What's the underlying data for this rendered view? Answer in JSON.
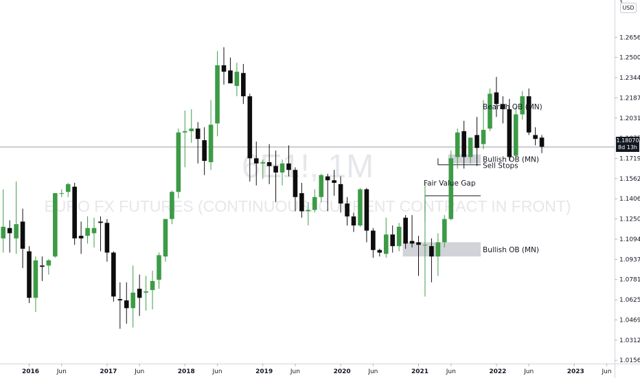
{
  "chart_data": {
    "type": "candlestick",
    "watermark": {
      "symbol": "6E1!, 1M",
      "description": "EURO FX FUTURES (CONTINUOUS: CURRENT CONTRACT IN FRONT)"
    },
    "currency": "USD",
    "last_price": {
      "value": "1.18070",
      "countdown": "8d 13h"
    },
    "y_axis": {
      "ticks": [
        "1.26565",
        "1.25000",
        "1.23440",
        "1.21875",
        "1.20315",
        "1.18750",
        "1.17190",
        "1.15625",
        "1.14065",
        "1.12500",
        "1.10940",
        "1.09375",
        "1.07815",
        "1.06250",
        "1.04690",
        "1.03125",
        "1.01565"
      ],
      "ylim": [
        1.0131,
        1.2908
      ]
    },
    "x_axis": {
      "ticks": [
        {
          "label": "2016",
          "bold": true,
          "m": 0
        },
        {
          "label": "Jun",
          "bold": false,
          "m": 5
        },
        {
          "label": "2017",
          "bold": true,
          "m": 12
        },
        {
          "label": "Jun",
          "bold": false,
          "m": 17
        },
        {
          "label": "2018",
          "bold": true,
          "m": 24
        },
        {
          "label": "Jun",
          "bold": false,
          "m": 29
        },
        {
          "label": "2019",
          "bold": true,
          "m": 36
        },
        {
          "label": "Jun",
          "bold": false,
          "m": 41
        },
        {
          "label": "2020",
          "bold": true,
          "m": 48
        },
        {
          "label": "Jun",
          "bold": false,
          "m": 53
        },
        {
          "label": "2021",
          "bold": true,
          "m": 60
        },
        {
          "label": "Jun",
          "bold": false,
          "m": 65
        },
        {
          "label": "2022",
          "bold": true,
          "m": 72
        },
        {
          "label": "Jun",
          "bold": false,
          "m": 77
        },
        {
          "label": "2023",
          "bold": true,
          "m": 84
        },
        {
          "label": "Jun",
          "bold": false,
          "m": 89
        }
      ]
    },
    "candles": [
      {
        "o": 1.11,
        "h": 1.148,
        "l": 1.099,
        "c": 1.119
      },
      {
        "o": 1.118,
        "h": 1.124,
        "l": 1.099,
        "c": 1.114
      },
      {
        "o": 1.11,
        "h": 1.154,
        "l": 1.098,
        "c": 1.121
      },
      {
        "o": 1.123,
        "h": 1.133,
        "l": 1.087,
        "c": 1.102
      },
      {
        "o": 1.1,
        "h": 1.104,
        "l": 1.06,
        "c": 1.064
      },
      {
        "o": 1.064,
        "h": 1.096,
        "l": 1.053,
        "c": 1.093
      },
      {
        "o": 1.089,
        "h": 1.096,
        "l": 1.077,
        "c": 1.088
      },
      {
        "o": 1.089,
        "h": 1.094,
        "l": 1.082,
        "c": 1.093
      },
      {
        "o": 1.096,
        "h": 1.145,
        "l": 1.095,
        "c": 1.145
      },
      {
        "o": 1.145,
        "h": 1.148,
        "l": 1.142,
        "c": 1.145
      },
      {
        "o": 1.146,
        "h": 1.153,
        "l": 1.142,
        "c": 1.152
      },
      {
        "o": 1.15,
        "h": 1.153,
        "l": 1.105,
        "c": 1.11
      },
      {
        "o": 1.112,
        "h": 1.123,
        "l": 1.098,
        "c": 1.11
      },
      {
        "o": 1.112,
        "h": 1.127,
        "l": 1.106,
        "c": 1.118
      },
      {
        "o": 1.114,
        "h": 1.126,
        "l": 1.103,
        "c": 1.118
      },
      {
        "o": 1.123,
        "h": 1.127,
        "l": 1.1,
        "c": 1.122
      },
      {
        "o": 1.122,
        "h": 1.125,
        "l": 1.092,
        "c": 1.099
      },
      {
        "o": 1.099,
        "h": 1.1,
        "l": 1.061,
        "c": 1.065
      },
      {
        "o": 1.063,
        "h": 1.076,
        "l": 1.04,
        "c": 1.062
      },
      {
        "o": 1.062,
        "h": 1.076,
        "l": 1.044,
        "c": 1.056
      },
      {
        "o": 1.056,
        "h": 1.089,
        "l": 1.041,
        "c": 1.068
      },
      {
        "o": 1.071,
        "h": 1.082,
        "l": 1.05,
        "c": 1.064
      },
      {
        "o": 1.068,
        "h": 1.081,
        "l": 1.054,
        "c": 1.069
      },
      {
        "o": 1.07,
        "h": 1.085,
        "l": 1.055,
        "c": 1.077
      },
      {
        "o": 1.078,
        "h": 1.099,
        "l": 1.071,
        "c": 1.097
      },
      {
        "o": 1.096,
        "h": 1.125,
        "l": 1.092,
        "c": 1.125
      },
      {
        "o": 1.125,
        "h": 1.147,
        "l": 1.121,
        "c": 1.146
      },
      {
        "o": 1.146,
        "h": 1.195,
        "l": 1.141,
        "c": 1.192
      },
      {
        "o": 1.192,
        "h": 1.209,
        "l": 1.165,
        "c": 1.193
      },
      {
        "o": 1.193,
        "h": 1.21,
        "l": 1.184,
        "c": 1.195
      },
      {
        "o": 1.195,
        "h": 1.2,
        "l": 1.168,
        "c": 1.187
      },
      {
        "o": 1.186,
        "h": 1.196,
        "l": 1.159,
        "c": 1.17
      },
      {
        "o": 1.169,
        "h": 1.217,
        "l": 1.163,
        "c": 1.198
      },
      {
        "o": 1.199,
        "h": 1.255,
        "l": 1.189,
        "c": 1.244
      },
      {
        "o": 1.244,
        "h": 1.258,
        "l": 1.229,
        "c": 1.239
      },
      {
        "o": 1.24,
        "h": 1.25,
        "l": 1.232,
        "c": 1.23
      },
      {
        "o": 1.228,
        "h": 1.246,
        "l": 1.22,
        "c": 1.239
      },
      {
        "o": 1.238,
        "h": 1.245,
        "l": 1.214,
        "c": 1.22
      },
      {
        "o": 1.22,
        "h": 1.222,
        "l": 1.154,
        "c": 1.172
      },
      {
        "o": 1.172,
        "h": 1.185,
        "l": 1.151,
        "c": 1.168
      },
      {
        "o": 1.168,
        "h": 1.171,
        "l": 1.156,
        "c": 1.169
      },
      {
        "o": 1.169,
        "h": 1.183,
        "l": 1.152,
        "c": 1.166
      },
      {
        "o": 1.166,
        "h": 1.178,
        "l": 1.138,
        "c": 1.161
      },
      {
        "o": 1.161,
        "h": 1.171,
        "l": 1.151,
        "c": 1.168
      },
      {
        "o": 1.168,
        "h": 1.182,
        "l": 1.158,
        "c": 1.163
      },
      {
        "o": 1.163,
        "h": 1.165,
        "l": 1.131,
        "c": 1.142
      },
      {
        "o": 1.145,
        "h": 1.153,
        "l": 1.126,
        "c": 1.131
      },
      {
        "o": 1.131,
        "h": 1.138,
        "l": 1.12,
        "c": 1.132
      },
      {
        "o": 1.132,
        "h": 1.148,
        "l": 1.13,
        "c": 1.142
      },
      {
        "o": 1.142,
        "h": 1.16,
        "l": 1.138,
        "c": 1.159
      },
      {
        "o": 1.158,
        "h": 1.16,
        "l": 1.131,
        "c": 1.155
      },
      {
        "o": 1.155,
        "h": 1.163,
        "l": 1.143,
        "c": 1.153
      },
      {
        "o": 1.152,
        "h": 1.158,
        "l": 1.13,
        "c": 1.137
      },
      {
        "o": 1.137,
        "h": 1.142,
        "l": 1.12,
        "c": 1.127
      },
      {
        "o": 1.127,
        "h": 1.13,
        "l": 1.115,
        "c": 1.12
      },
      {
        "o": 1.12,
        "h": 1.149,
        "l": 1.119,
        "c": 1.148
      },
      {
        "o": 1.148,
        "h": 1.149,
        "l": 1.107,
        "c": 1.116
      },
      {
        "o": 1.116,
        "h": 1.118,
        "l": 1.095,
        "c": 1.101
      },
      {
        "o": 1.101,
        "h": 1.102,
        "l": 1.096,
        "c": 1.099
      },
      {
        "o": 1.098,
        "h": 1.126,
        "l": 1.095,
        "c": 1.113
      },
      {
        "o": 1.113,
        "h": 1.12,
        "l": 1.099,
        "c": 1.104
      },
      {
        "o": 1.104,
        "h": 1.122,
        "l": 1.1,
        "c": 1.119
      },
      {
        "o": 1.126,
        "h": 1.128,
        "l": 1.102,
        "c": 1.106
      },
      {
        "o": 1.108,
        "h": 1.128,
        "l": 1.103,
        "c": 1.106
      },
      {
        "o": 1.107,
        "h": 1.112,
        "l": 1.081,
        "c": 1.105
      },
      {
        "o": 1.105,
        "h": 1.152,
        "l": 1.065,
        "c": 1.105
      },
      {
        "o": 1.104,
        "h": 1.11,
        "l": 1.076,
        "c": 1.096
      },
      {
        "o": 1.096,
        "h": 1.114,
        "l": 1.081,
        "c": 1.107
      },
      {
        "o": 1.107,
        "h": 1.128,
        "l": 1.103,
        "c": 1.125
      },
      {
        "o": 1.125,
        "h": 1.178,
        "l": 1.124,
        "c": 1.172
      },
      {
        "o": 1.173,
        "h": 1.195,
        "l": 1.164,
        "c": 1.192
      },
      {
        "o": 1.193,
        "h": 1.201,
        "l": 1.164,
        "c": 1.173
      },
      {
        "o": 1.173,
        "h": 1.188,
        "l": 1.168,
        "c": 1.188
      },
      {
        "o": 1.19,
        "h": 1.204,
        "l": 1.166,
        "c": 1.18
      },
      {
        "o": 1.183,
        "h": 1.217,
        "l": 1.179,
        "c": 1.194
      },
      {
        "o": 1.195,
        "h": 1.226,
        "l": 1.193,
        "c": 1.222
      },
      {
        "o": 1.223,
        "h": 1.235,
        "l": 1.204,
        "c": 1.214
      },
      {
        "o": 1.214,
        "h": 1.22,
        "l": 1.199,
        "c": 1.21
      },
      {
        "o": 1.21,
        "h": 1.218,
        "l": 1.17,
        "c": 1.173
      },
      {
        "o": 1.174,
        "h": 1.212,
        "l": 1.172,
        "c": 1.206
      },
      {
        "o": 1.206,
        "h": 1.224,
        "l": 1.202,
        "c": 1.22
      },
      {
        "o": 1.22,
        "h": 1.226,
        "l": 1.19,
        "c": 1.192
      },
      {
        "o": 1.19,
        "h": 1.196,
        "l": 1.182,
        "c": 1.187
      },
      {
        "o": 1.188,
        "h": 1.19,
        "l": 1.176,
        "c": 1.181
      }
    ],
    "zones": [
      {
        "label": "Bearish OB  (MN)",
        "top": 1.22,
        "bottom": 1.204,
        "from_candle": 77
      },
      {
        "label": "Bullish OB (MN)",
        "top": 1.175,
        "bottom": 1.168,
        "from_candle": 69
      },
      {
        "label": "Bullish OB (MN)",
        "top": 1.107,
        "bottom": 1.096,
        "from_candle": 62
      }
    ],
    "lines": [
      {
        "label": "Sell Stops",
        "y": 1.167,
        "from_candle": 67
      },
      {
        "label": "Fair Value Gap",
        "y": 1.143,
        "from_candle": 65
      }
    ],
    "current_price_line": 1.1807,
    "colors": {
      "up": "#3d9b46",
      "down": "#0d0d0d",
      "zone": "#d1d3d8",
      "grid": "#e0e3eb",
      "text": "#131722"
    }
  }
}
